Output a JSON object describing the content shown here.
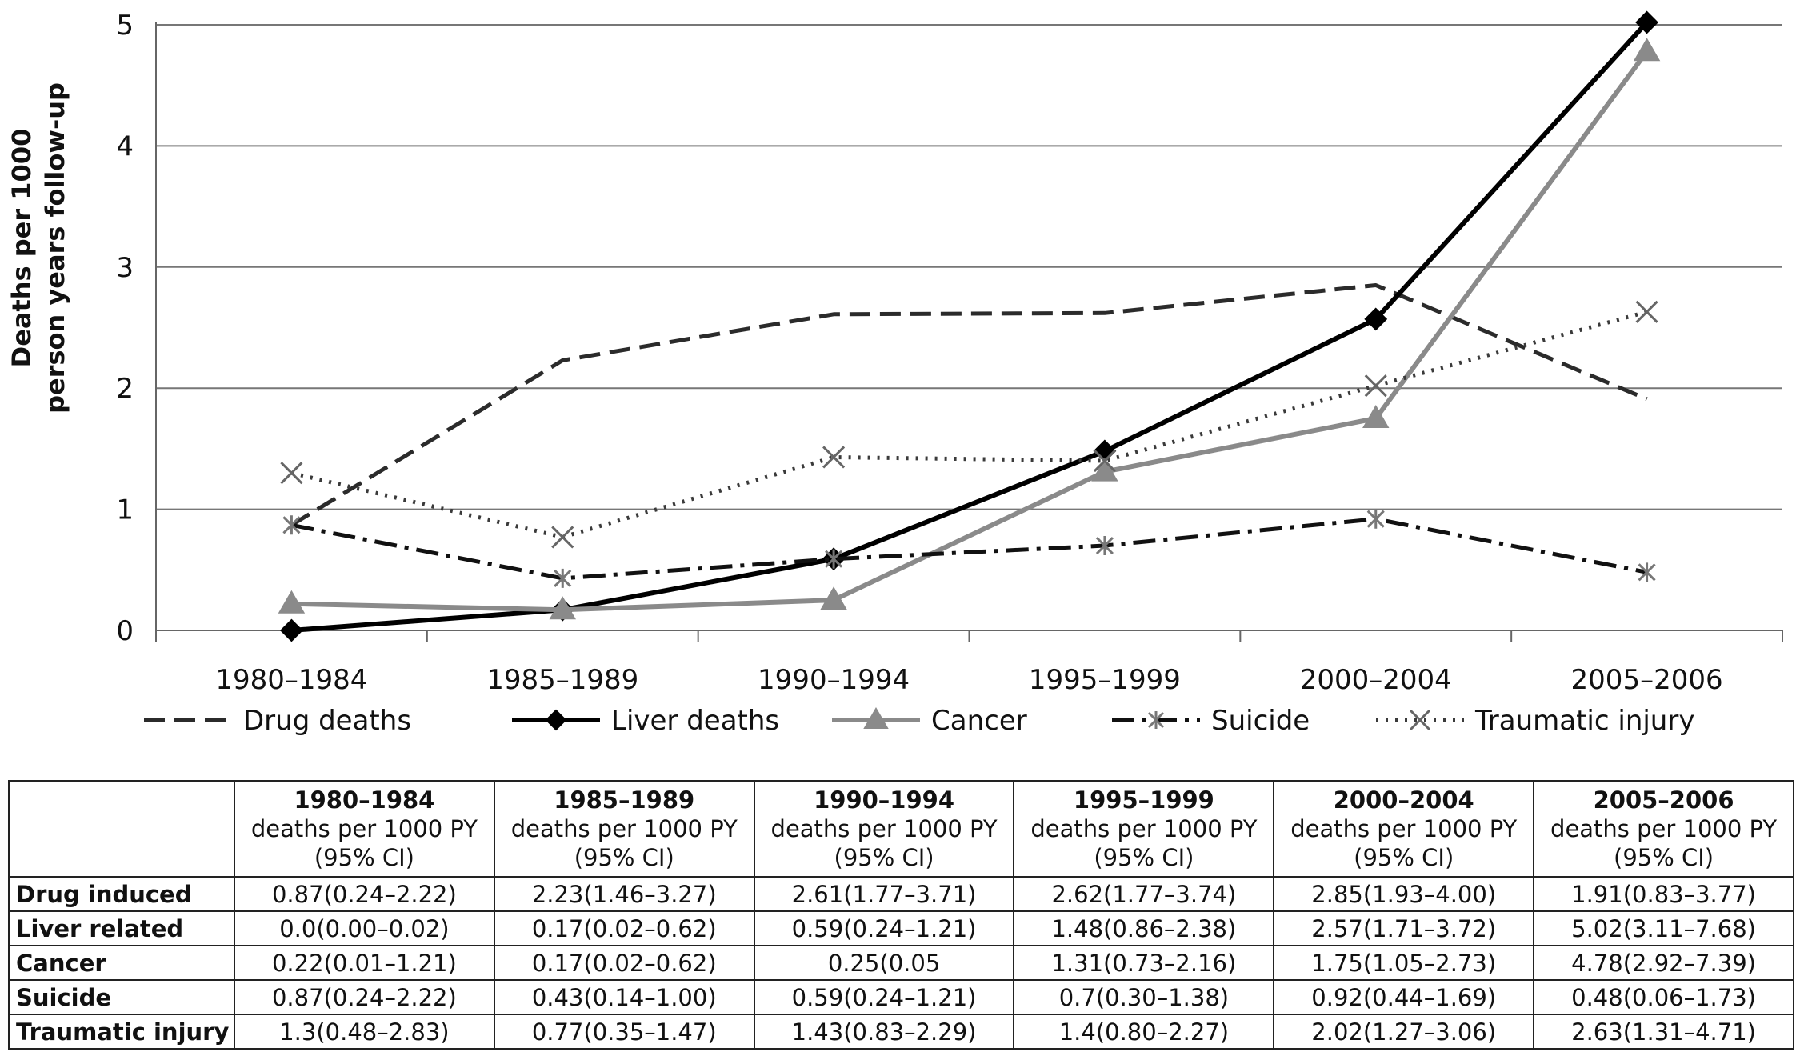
{
  "chart_data": {
    "type": "line",
    "categories": [
      "1980–1984",
      "1985–1989",
      "1990–1994",
      "1995–1999",
      "2000–2004",
      "2005–2006"
    ],
    "ylabel": [
      "Deaths per 1000",
      "person years follow-up"
    ],
    "ylim": [
      0,
      5
    ],
    "yticks": [
      "0",
      "1",
      "2",
      "3",
      "4",
      "5"
    ],
    "grid": true,
    "legend_position": "bottom",
    "series": [
      {
        "name": "Drug deaths",
        "values": [
          0.87,
          2.23,
          2.61,
          2.62,
          2.85,
          1.91
        ],
        "color": "#2b2b2b",
        "dash": "26,12",
        "marker": "none",
        "width": 5
      },
      {
        "name": "Liver deaths",
        "values": [
          0.0,
          0.17,
          0.59,
          1.48,
          2.57,
          5.02
        ],
        "color": "#000000",
        "dash": "",
        "marker": "diamond",
        "width": 6
      },
      {
        "name": "Cancer",
        "values": [
          0.22,
          0.17,
          0.25,
          1.31,
          1.75,
          4.78
        ],
        "color": "#8a8a8a",
        "dash": "",
        "marker": "triangle",
        "width": 6
      },
      {
        "name": "Suicide",
        "values": [
          0.87,
          0.43,
          0.59,
          0.7,
          0.92,
          0.48
        ],
        "color": "#111111",
        "dash": "28,10,5,10",
        "marker": "asterisk",
        "width": 5
      },
      {
        "name": "Traumatic injury",
        "values": [
          1.3,
          0.77,
          1.43,
          1.4,
          2.02,
          2.63
        ],
        "color": "#3a3a3a",
        "dash": "3,9",
        "marker": "x",
        "width": 5
      }
    ]
  },
  "table": {
    "periods": [
      "1980–1984",
      "1985–1989",
      "1990–1994",
      "1995–1999",
      "2000–2004",
      "2005–2006"
    ],
    "unit_label": "deaths per 1000 PY",
    "ci_label": "(95% CI)",
    "rows": [
      {
        "label": "Drug induced",
        "cells": [
          "0.87(0.24–2.22)",
          "2.23(1.46–3.27)",
          "2.61(1.77–3.71)",
          "2.62(1.77–3.74)",
          "2.85(1.93–4.00)",
          "1.91(0.83–3.77)"
        ]
      },
      {
        "label": "Liver related",
        "cells": [
          "0.0(0.00–0.02)",
          "0.17(0.02–0.62)",
          "0.59(0.24–1.21)",
          "1.48(0.86–2.38)",
          "2.57(1.71–3.72)",
          "5.02(3.11–7.68)"
        ]
      },
      {
        "label": "Cancer",
        "cells": [
          "0.22(0.01–1.21)",
          "0.17(0.02–0.62)",
          "0.25(0.05",
          "1.31(0.73–2.16)",
          "1.75(1.05–2.73)",
          "4.78(2.92–7.39)"
        ]
      },
      {
        "label": "Suicide",
        "cells": [
          "0.87(0.24–2.22)",
          "0.43(0.14–1.00)",
          "0.59(0.24–1.21)",
          "0.7(0.30–1.38)",
          "0.92(0.44–1.69)",
          "0.48(0.06–1.73)"
        ]
      },
      {
        "label": "Traumatic injury",
        "cells": [
          "1.3(0.48–2.83)",
          "0.77(0.35–1.47)",
          "1.43(0.83–2.29)",
          "1.4(0.80–2.27)",
          "2.02(1.27–3.06)",
          "2.63(1.31–4.71)"
        ]
      }
    ]
  }
}
